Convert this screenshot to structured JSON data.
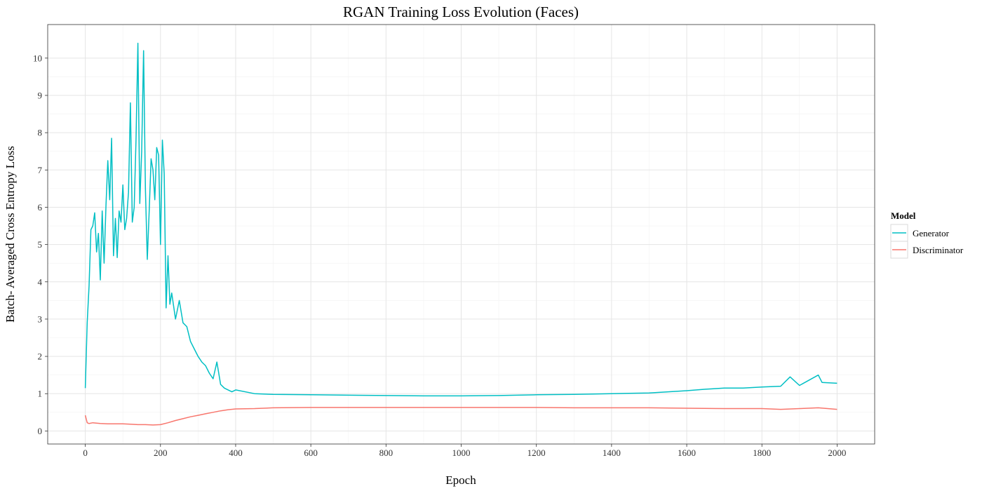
{
  "chart_data": {
    "type": "line",
    "title": "RGAN Training Loss Evolution (Faces)",
    "xlabel": "Epoch",
    "ylabel": "Batch- Averaged Cross Entropy Loss",
    "xlim": [
      -100,
      2100
    ],
    "ylim": [
      -0.35,
      10.9
    ],
    "x_ticks": [
      0,
      200,
      400,
      600,
      800,
      1000,
      1200,
      1400,
      1600,
      1800,
      2000
    ],
    "y_ticks": [
      0,
      1,
      2,
      3,
      4,
      5,
      6,
      7,
      8,
      9,
      10
    ],
    "grid": true,
    "legend": {
      "title": "Model",
      "placement": "right",
      "entries": [
        "Generator",
        "Discriminator"
      ]
    },
    "series": [
      {
        "name": "Generator",
        "color": "#00BFC4",
        "x": [
          0,
          5,
          10,
          15,
          20,
          25,
          30,
          35,
          40,
          45,
          50,
          55,
          60,
          65,
          70,
          75,
          80,
          85,
          90,
          95,
          100,
          105,
          110,
          115,
          120,
          125,
          130,
          135,
          140,
          145,
          150,
          155,
          160,
          165,
          170,
          175,
          180,
          185,
          190,
          195,
          200,
          205,
          210,
          215,
          220,
          225,
          230,
          240,
          250,
          260,
          270,
          280,
          290,
          300,
          310,
          320,
          330,
          340,
          350,
          360,
          370,
          380,
          390,
          400,
          450,
          500,
          600,
          700,
          800,
          900,
          1000,
          1100,
          1200,
          1300,
          1400,
          1500,
          1550,
          1600,
          1650,
          1700,
          1750,
          1800,
          1850,
          1875,
          1900,
          1950,
          1960,
          2000
        ],
        "y": [
          1.15,
          2.9,
          3.9,
          5.4,
          5.5,
          5.85,
          4.8,
          5.3,
          4.05,
          5.9,
          4.5,
          6.05,
          7.25,
          6.2,
          7.85,
          4.7,
          5.7,
          4.65,
          5.9,
          5.6,
          6.6,
          5.4,
          5.7,
          6.4,
          8.8,
          5.6,
          6.0,
          7.8,
          10.4,
          6.1,
          7.5,
          10.2,
          6.5,
          4.6,
          5.9,
          7.3,
          7.0,
          6.2,
          7.6,
          7.4,
          5.0,
          7.8,
          6.9,
          3.3,
          4.7,
          3.4,
          3.7,
          3.0,
          3.5,
          2.9,
          2.8,
          2.4,
          2.2,
          2.0,
          1.85,
          1.75,
          1.55,
          1.4,
          1.85,
          1.25,
          1.15,
          1.1,
          1.05,
          1.1,
          1.0,
          0.98,
          0.97,
          0.96,
          0.95,
          0.94,
          0.94,
          0.95,
          0.97,
          0.98,
          1.0,
          1.02,
          1.05,
          1.08,
          1.12,
          1.15,
          1.15,
          1.18,
          1.2,
          1.45,
          1.22,
          1.5,
          1.3,
          1.28
        ]
      },
      {
        "name": "Discriminator",
        "color": "#F8766D",
        "x": [
          0,
          5,
          10,
          20,
          40,
          60,
          80,
          100,
          120,
          140,
          160,
          180,
          200,
          220,
          240,
          260,
          280,
          300,
          320,
          340,
          360,
          380,
          400,
          450,
          500,
          600,
          700,
          800,
          900,
          1000,
          1100,
          1200,
          1300,
          1400,
          1500,
          1600,
          1700,
          1800,
          1850,
          1900,
          1950,
          2000
        ],
        "y": [
          0.42,
          0.22,
          0.2,
          0.22,
          0.2,
          0.19,
          0.19,
          0.19,
          0.18,
          0.17,
          0.17,
          0.16,
          0.17,
          0.22,
          0.28,
          0.33,
          0.38,
          0.42,
          0.46,
          0.5,
          0.54,
          0.57,
          0.59,
          0.6,
          0.62,
          0.63,
          0.63,
          0.63,
          0.63,
          0.63,
          0.63,
          0.63,
          0.62,
          0.62,
          0.62,
          0.61,
          0.6,
          0.6,
          0.58,
          0.6,
          0.62,
          0.58
        ]
      }
    ]
  }
}
